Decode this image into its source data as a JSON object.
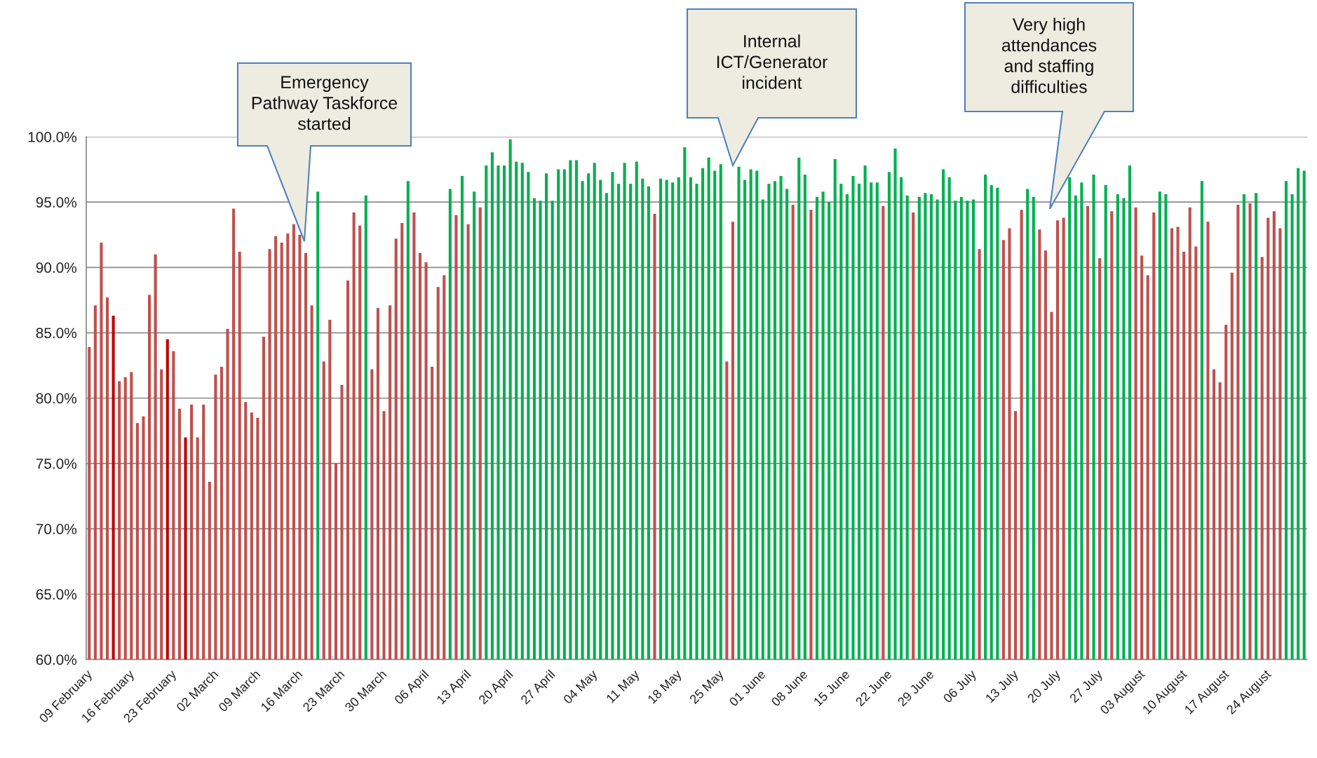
{
  "chart_data": {
    "type": "bar",
    "categories": [
      "09 February",
      null,
      null,
      null,
      null,
      null,
      null,
      "16 February",
      null,
      null,
      null,
      null,
      null,
      null,
      "23 February",
      null,
      null,
      null,
      null,
      null,
      null,
      "02 March",
      null,
      null,
      null,
      null,
      null,
      null,
      "09 March",
      null,
      null,
      null,
      null,
      null,
      null,
      "16 March",
      null,
      null,
      null,
      null,
      null,
      null,
      "23 March",
      null,
      null,
      null,
      null,
      null,
      null,
      "30 March",
      null,
      null,
      null,
      null,
      null,
      null,
      "06 April",
      null,
      null,
      null,
      null,
      null,
      null,
      "13 April",
      null,
      null,
      null,
      null,
      null,
      null,
      "20 April",
      null,
      null,
      null,
      null,
      null,
      null,
      "27 April",
      null,
      null,
      null,
      null,
      null,
      null,
      "04 May",
      null,
      null,
      null,
      null,
      null,
      null,
      "11 May",
      null,
      null,
      null,
      null,
      null,
      null,
      "18 May",
      null,
      null,
      null,
      null,
      null,
      null,
      "25 May",
      null,
      null,
      null,
      null,
      null,
      null,
      "01 June",
      null,
      null,
      null,
      null,
      null,
      null,
      "08 June",
      null,
      null,
      null,
      null,
      null,
      null,
      "15 June",
      null,
      null,
      null,
      null,
      null,
      null,
      "22 June",
      null,
      null,
      null,
      null,
      null,
      null,
      "29 June",
      null,
      null,
      null,
      null,
      null,
      null,
      "06 July",
      null,
      null,
      null,
      null,
      null,
      null,
      "13 July",
      null,
      null,
      null,
      null,
      null,
      null,
      "20 July",
      null,
      null,
      null,
      null,
      null,
      null,
      "27 July",
      null,
      null,
      null,
      null,
      null,
      null,
      "03 August",
      null,
      null,
      null,
      null,
      null,
      null,
      "10 August",
      null,
      null,
      null,
      null,
      null,
      null,
      "17 August",
      null,
      null,
      null,
      null,
      null,
      null,
      "24 August",
      null,
      null,
      null,
      null,
      null,
      null
    ],
    "values": [
      83.9,
      87.1,
      91.9,
      87.7,
      86.3,
      81.3,
      81.6,
      82.0,
      78.1,
      78.6,
      87.9,
      91.0,
      82.2,
      84.5,
      83.6,
      79.2,
      77.0,
      79.5,
      77.0,
      79.5,
      73.6,
      81.8,
      82.4,
      85.3,
      94.5,
      91.2,
      79.7,
      78.9,
      78.5,
      84.7,
      91.4,
      92.4,
      91.9,
      92.6,
      93.3,
      92.5,
      91.1,
      87.1,
      95.8,
      82.8,
      86.0,
      75.0,
      81.0,
      89.0,
      94.2,
      93.2,
      95.5,
      82.2,
      86.9,
      79.0,
      87.1,
      92.2,
      93.4,
      96.6,
      94.2,
      91.1,
      90.4,
      82.4,
      88.5,
      89.4,
      96.0,
      94.0,
      97.0,
      93.3,
      95.8,
      94.6,
      97.8,
      98.8,
      97.8,
      97.8,
      99.8,
      98.1,
      98.0,
      97.3,
      95.3,
      95.1,
      97.2,
      95.1,
      97.5,
      97.5,
      98.2,
      98.2,
      96.6,
      97.2,
      98.0,
      96.7,
      95.7,
      97.3,
      96.4,
      98.0,
      96.4,
      98.1,
      96.8,
      96.2,
      94.1,
      96.8,
      96.7,
      96.5,
      96.9,
      99.2,
      96.9,
      96.4,
      97.6,
      98.4,
      97.4,
      97.9,
      82.8,
      93.5,
      97.7,
      96.7,
      97.5,
      97.4,
      95.2,
      96.4,
      96.6,
      97.0,
      96.0,
      94.8,
      98.4,
      97.1,
      94.4,
      95.4,
      95.8,
      95.0,
      98.3,
      96.4,
      95.6,
      97.0,
      96.4,
      97.8,
      96.5,
      96.5,
      94.7,
      97.3,
      99.1,
      96.9,
      95.5,
      94.2,
      95.4,
      95.7,
      95.6,
      95.2,
      97.5,
      96.9,
      95.1,
      95.4,
      95.1,
      95.2,
      91.4,
      97.1,
      96.3,
      96.1,
      92.1,
      93.0,
      79.0,
      94.4,
      96.0,
      95.4,
      92.9,
      91.3,
      86.6,
      93.6,
      93.8,
      96.9,
      95.5,
      96.5,
      94.7,
      97.1,
      90.7,
      96.3,
      94.3,
      95.6,
      95.3,
      97.8,
      94.6,
      90.9,
      89.4,
      94.2,
      95.8,
      95.6,
      93.0,
      93.1,
      91.2,
      94.6,
      91.6,
      96.6,
      93.5,
      82.2,
      81.2,
      85.6,
      89.6,
      94.8,
      95.6,
      94.9,
      95.7,
      90.8,
      93.8,
      94.3,
      93.0,
      96.6,
      95.6,
      97.6,
      97.4
    ],
    "colors": [
      "#c0504d",
      "#c0504d",
      "#c0504d",
      "#c0504d",
      "#c00000",
      "#c0504d",
      "#c0504d",
      "#c0504d",
      "#c0504d",
      "#c0504d",
      "#c0504d",
      "#c0504d",
      "#c0504d",
      "#c00000",
      "#c0504d",
      "#c0504d",
      "#c00000",
      "#c0504d",
      "#c0504d",
      "#c0504d",
      "#c0504d",
      "#c0504d",
      "#c0504d",
      "#c0504d",
      "#c0504d",
      "#c0504d",
      "#c0504d",
      "#c0504d",
      "#c0504d",
      "#c0504d",
      "#c0504d",
      "#c0504d",
      "#c0504d",
      "#c0504d",
      "#c0504d",
      "#c0504d",
      "#c0504d",
      "#c0504d",
      "#00b050",
      "#c0504d",
      "#c0504d",
      "#c0504d",
      "#c0504d",
      "#c0504d",
      "#c0504d",
      "#c0504d",
      "#00b050",
      "#c0504d",
      "#c0504d",
      "#c0504d",
      "#c0504d",
      "#c0504d",
      "#c0504d",
      "#00b050",
      "#c0504d",
      "#c0504d",
      "#c0504d",
      "#c0504d",
      "#c0504d",
      "#c0504d",
      "#00b050",
      "#c0504d",
      "#00b050",
      "#c0504d",
      "#00b050",
      "#c0504d",
      "#00b050",
      "#00b050",
      "#00b050",
      "#00b050",
      "#00b050",
      "#00b050",
      "#00b050",
      "#00b050",
      "#00b050",
      "#00b050",
      "#00b050",
      "#00b050",
      "#00b050",
      "#00b050",
      "#00b050",
      "#00b050",
      "#00b050",
      "#00b050",
      "#00b050",
      "#00b050",
      "#00b050",
      "#00b050",
      "#00b050",
      "#00b050",
      "#00b050",
      "#00b050",
      "#00b050",
      "#00b050",
      "#c0504d",
      "#00b050",
      "#00b050",
      "#00b050",
      "#00b050",
      "#00b050",
      "#00b050",
      "#00b050",
      "#00b050",
      "#00b050",
      "#00b050",
      "#00b050",
      "#c0504d",
      "#c0504d",
      "#00b050",
      "#00b050",
      "#00b050",
      "#00b050",
      "#00b050",
      "#00b050",
      "#00b050",
      "#00b050",
      "#00b050",
      "#c0504d",
      "#00b050",
      "#00b050",
      "#c0504d",
      "#00b050",
      "#00b050",
      "#00b050",
      "#00b050",
      "#00b050",
      "#00b050",
      "#00b050",
      "#00b050",
      "#00b050",
      "#00b050",
      "#00b050",
      "#c0504d",
      "#00b050",
      "#00b050",
      "#00b050",
      "#00b050",
      "#c0504d",
      "#00b050",
      "#00b050",
      "#00b050",
      "#00b050",
      "#00b050",
      "#00b050",
      "#00b050",
      "#00b050",
      "#00b050",
      "#00b050",
      "#c0504d",
      "#00b050",
      "#00b050",
      "#00b050",
      "#c0504d",
      "#c0504d",
      "#c0504d",
      "#c0504d",
      "#00b050",
      "#00b050",
      "#c0504d",
      "#c0504d",
      "#c0504d",
      "#c0504d",
      "#c0504d",
      "#00b050",
      "#00b050",
      "#00b050",
      "#c0504d",
      "#00b050",
      "#c0504d",
      "#00b050",
      "#c0504d",
      "#00b050",
      "#00b050",
      "#00b050",
      "#c0504d",
      "#c0504d",
      "#c0504d",
      "#c0504d",
      "#00b050",
      "#00b050",
      "#c0504d",
      "#c0504d",
      "#c0504d",
      "#c0504d",
      "#c0504d",
      "#00b050",
      "#c0504d",
      "#c0504d",
      "#c0504d",
      "#c0504d",
      "#c0504d",
      "#c0504d",
      "#00b050",
      "#c0504d",
      "#00b050",
      "#c0504d",
      "#c0504d",
      "#c0504d",
      "#c0504d",
      "#00b050",
      "#00b050",
      "#00b050",
      "#00b050"
    ],
    "ylim": [
      60,
      100
    ],
    "yticks": [
      {
        "value": 60,
        "label": "60.0%"
      },
      {
        "value": 65,
        "label": "65.0%"
      },
      {
        "value": 70,
        "label": "70.0%"
      },
      {
        "value": 75,
        "label": "75.0%"
      },
      {
        "value": 80,
        "label": "80.0%"
      },
      {
        "value": 85,
        "label": "85.0%"
      },
      {
        "value": 90,
        "label": "90.0%"
      },
      {
        "value": 95,
        "label": "95.0%"
      },
      {
        "value": 100,
        "label": "100.0%"
      }
    ],
    "grid": "y",
    "annotations": [
      "Emergency\nPathway Taskforce\nstarted",
      "Internal\nICT/Generator\nincident",
      "Very high\nattendances\nand staffing\ndifficulties"
    ]
  }
}
